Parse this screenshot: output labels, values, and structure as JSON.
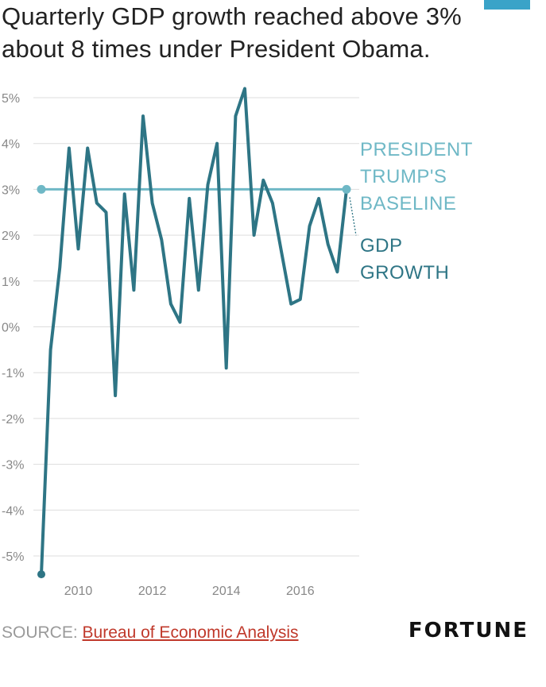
{
  "title": "Quarterly GDP growth reached above 3% about 8 times under President Obama.",
  "colors": {
    "accent": "#3aa3c8",
    "gdp_line": "#2e7585",
    "baseline_line": "#6fb8c6",
    "grid": "#dddddd",
    "tick": "#888888",
    "source_link": "#c0392b"
  },
  "source": {
    "prefix": "SOURCE:",
    "link_text": "Bureau of Economic Analysis"
  },
  "brand": "FORTUNE",
  "chart_data": {
    "type": "line",
    "title": "Quarterly GDP growth reached above 3% about 8 times under President Obama.",
    "xlabel": "",
    "ylabel": "",
    "ylim": [
      -5.5,
      5.5
    ],
    "xlim": [
      2009.0,
      2017.25
    ],
    "y_ticks": [
      5,
      4,
      3,
      2,
      1,
      0,
      -1,
      -2,
      -3,
      -4,
      -5
    ],
    "y_tick_labels": [
      "5%",
      "4%",
      "3%",
      "2%",
      "1%",
      "0%",
      "-1%",
      "-2%",
      "-3%",
      "-4%",
      "-5%"
    ],
    "x_ticks": [
      2010,
      2012,
      2014,
      2016
    ],
    "x_tick_labels": [
      "2010",
      "2012",
      "2014",
      "2016"
    ],
    "grid": true,
    "series": [
      {
        "name": "GDP GROWTH",
        "label_lines": [
          "GDP",
          "GROWTH"
        ],
        "x": [
          2009.0,
          2009.25,
          2009.5,
          2009.75,
          2010.0,
          2010.25,
          2010.5,
          2010.75,
          2011.0,
          2011.25,
          2011.5,
          2011.75,
          2012.0,
          2012.25,
          2012.5,
          2012.75,
          2013.0,
          2013.25,
          2013.5,
          2013.75,
          2014.0,
          2014.25,
          2014.5,
          2014.75,
          2015.0,
          2015.25,
          2015.5,
          2015.75,
          2016.0,
          2016.25,
          2016.5,
          2016.75,
          2017.0,
          2017.25
        ],
        "values": [
          -5.4,
          -0.5,
          1.3,
          3.9,
          1.7,
          3.9,
          2.7,
          2.5,
          -1.5,
          2.9,
          0.8,
          4.6,
          2.7,
          1.9,
          0.5,
          0.1,
          2.8,
          0.8,
          3.1,
          4.0,
          -0.9,
          4.6,
          5.2,
          2.0,
          3.2,
          2.7,
          1.6,
          0.5,
          0.6,
          2.2,
          2.8,
          1.8,
          1.2,
          3.0
        ]
      },
      {
        "name": "PRESIDENT TRUMP'S BASELINE",
        "label_lines": [
          "PRESIDENT",
          "TRUMP'S",
          "BASELINE"
        ],
        "x": [
          2009.0,
          2017.25
        ],
        "values": [
          3,
          3
        ]
      }
    ]
  }
}
